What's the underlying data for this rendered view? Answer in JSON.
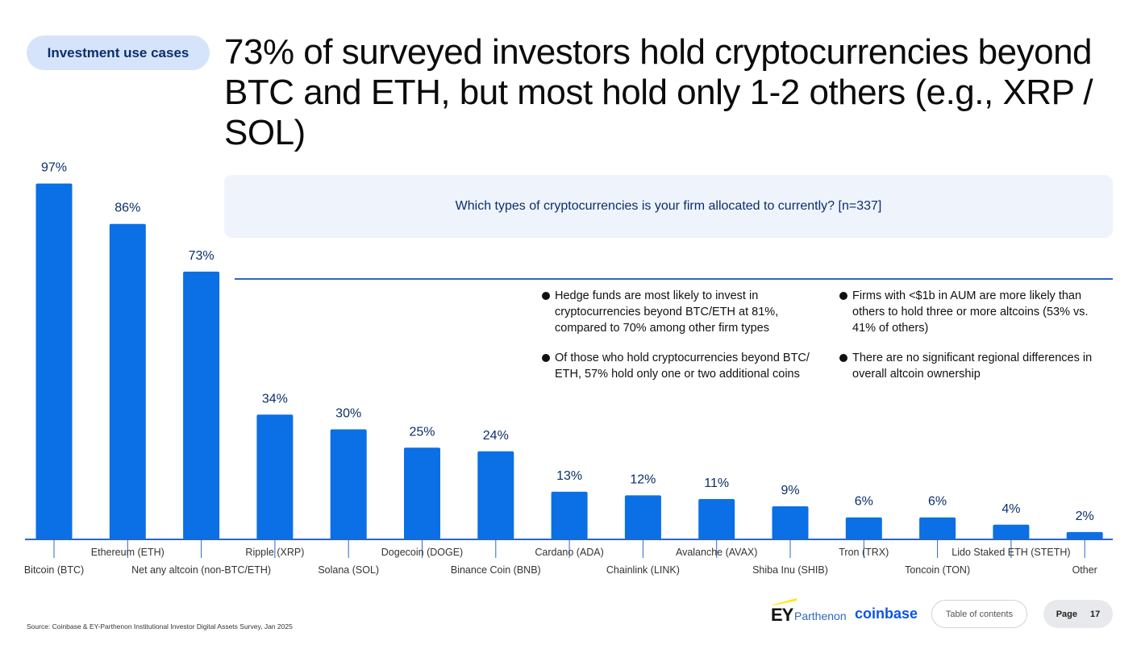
{
  "section_tag": "Investment use cases",
  "headline": "73% of surveyed investors hold cryptocurrencies beyond BTC and ETH, but most hold only 1-2 others (e.g., XRP / SOL)",
  "question": "Which types of cryptocurrencies is your firm allocated to currently? [n=337]",
  "notes": [
    [
      "Hedge funds are most likely to invest in cryptocurrencies beyond BTC/ETH at 81%, compared to 70% among other firm types",
      "Of those who hold cryptocurrencies beyond BTC/ ETH, 57% hold only one or two additional coins"
    ],
    [
      "Firms with <$1b in AUM are more likely than others to hold three or more altcoins (53% vs. 41% of others)",
      "There are no significant regional differences in overall altcoin ownership"
    ]
  ],
  "chart_data": {
    "type": "bar",
    "categories": [
      "Bitcoin (BTC)",
      "Ethereum (ETH)",
      "Net any altcoin (non-BTC/ETH)",
      "Ripple (XRP)",
      "Solana (SOL)",
      "Dogecoin (DOGE)",
      "Binance Coin (BNB)",
      "Cardano (ADA)",
      "Chainlink (LINK)",
      "Avalanche (AVAX)",
      "Shiba Inu (SHIB)",
      "Tron (TRX)",
      "Toncoin (TON)",
      "Lido Staked ETH (STETH)",
      "Other"
    ],
    "values": [
      97,
      86,
      73,
      34,
      30,
      25,
      24,
      13,
      12,
      11,
      9,
      6,
      6,
      4,
      2
    ],
    "data_labels": [
      "97%",
      "86%",
      "73%",
      "34%",
      "30%",
      "25%",
      "24%",
      "13%",
      "12%",
      "11%",
      "9%",
      "6%",
      "6%",
      "4%",
      "2%"
    ],
    "ylim": [
      0,
      100
    ],
    "bar_color": "#0b6fe6",
    "label_color": "#0a2f6b",
    "grid": false,
    "legend": "none"
  },
  "footer": {
    "source": "Source: Coinbase & EY-Parthenon Institutional Investor Digital Assets Survey, Jan 2025",
    "logo_ey": "EY",
    "logo_parthenon": "Parthenon",
    "logo_coinbase": "coinbase",
    "toc_label": "Table of contents",
    "page_label": "Page",
    "page_number": "17"
  }
}
